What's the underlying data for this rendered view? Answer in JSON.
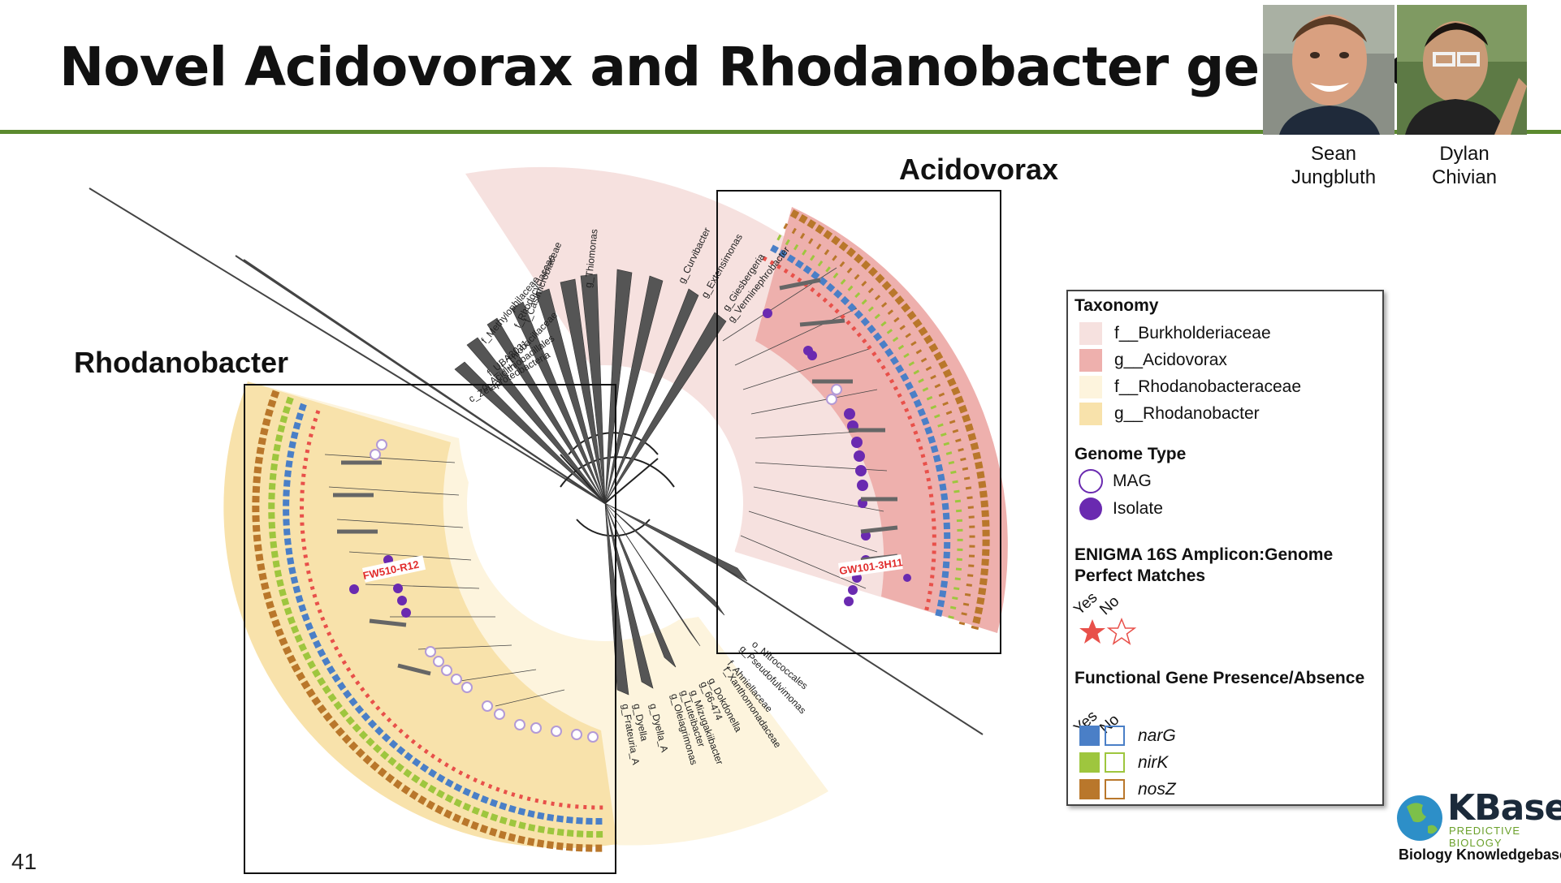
{
  "slide": {
    "title": "Novel Acidovorax and Rhodanobacter genomes",
    "number": "41"
  },
  "people": [
    {
      "first": "Sean",
      "last": "Jungbluth"
    },
    {
      "first": "Dylan",
      "last": "Chivian"
    }
  ],
  "labels": {
    "acidovorax": "Acidovorax",
    "rhodanobacter": "Rhodanobacter",
    "highlight_acid": "GW101-3H11",
    "highlight_rhodo": "FW510-R12"
  },
  "tree_labels": [
    "g_Thiomonas",
    "f_Casimicrobiaceae",
    "f_Rhodocyclaceae",
    "f_Methylophilaceae",
    "f_Thiobacillaceae",
    "f_UBA3031",
    "o_Acidithiobacillales",
    "c_Zetaproteobacteria",
    "g_Curvibacter",
    "g_Extensimonas",
    "g_Giesbergeria",
    "g_Verminephrobacter",
    "o_Nitrococcales",
    "g_Pseudofulvimonas",
    "f_Ahniellaceae",
    "f_Xanthomonadaceae",
    "g_Dokdonella",
    "g_66-474",
    "g_Mizugakiibacter",
    "g_Luteibacter",
    "g_Oleiagrimonas",
    "g_Dyella",
    "g_Frateuria_A",
    "g_Dyella_A"
  ],
  "legend": {
    "taxonomy_title": "Taxonomy",
    "taxonomy": [
      {
        "label": "f__Burkholderiaceae",
        "color": "#f6e1df"
      },
      {
        "label": "g__Acidovorax",
        "color": "#eeb0ad"
      },
      {
        "label": "f__Rhodanobacteraceae",
        "color": "#fdf4dd"
      },
      {
        "label": "g__Rhodanobacter",
        "color": "#f8e2ab"
      }
    ],
    "genome_type_title": "Genome Type",
    "genome_types": [
      {
        "label": "MAG",
        "symbol": "open-circle"
      },
      {
        "label": "Isolate",
        "symbol": "filled-circle",
        "color": "#6a2ab0"
      }
    ],
    "enigma_title": "ENIGMA 16S Amplicon:Genome Perfect Matches",
    "yes": "Yes",
    "no": "No",
    "star_color": "#e8504a",
    "functional_title": "Functional Gene Presence/Absence",
    "genes": [
      {
        "label": "narG",
        "color": "#4a7fc7"
      },
      {
        "label": "nirK",
        "color": "#9ec63e"
      },
      {
        "label": "nosZ",
        "color": "#b9772b"
      }
    ]
  },
  "logo": {
    "name": "KBase",
    "tagline": "PREDICTIVE BIOLOGY",
    "subtitle": "Biology Knowledgebase"
  }
}
